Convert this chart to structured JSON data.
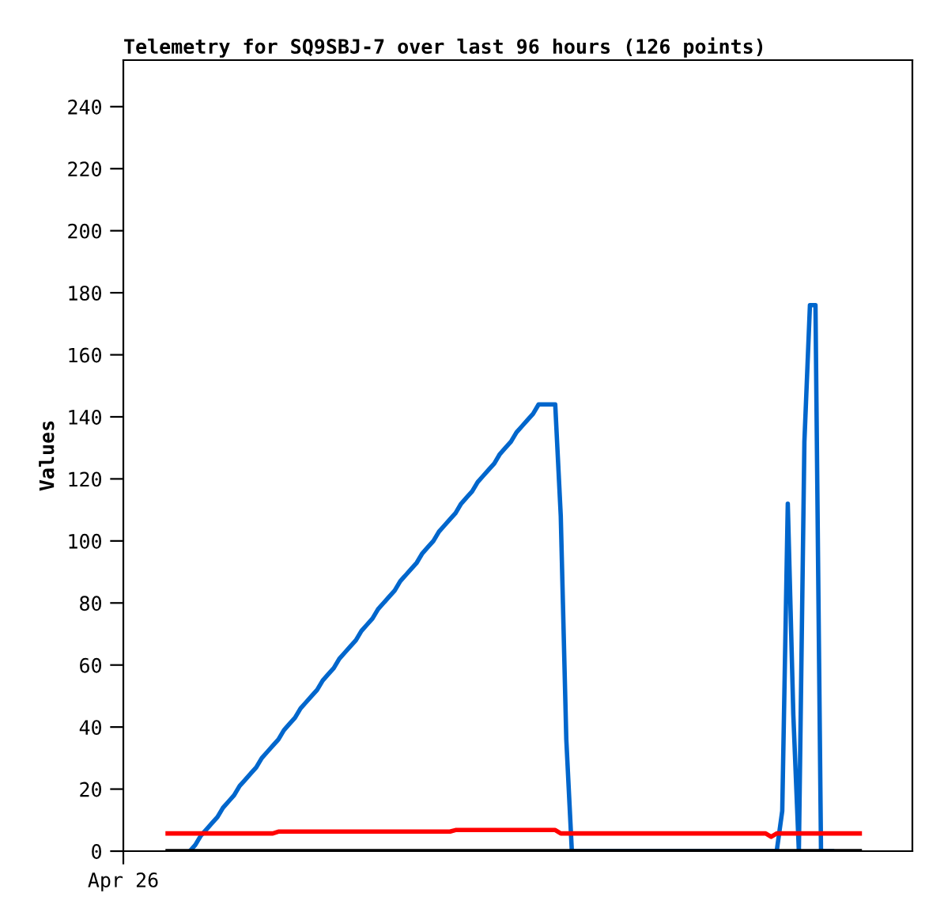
{
  "chart_data": {
    "type": "line",
    "title": "Telemetry for SQ9SBJ-7 over last 96 hours (126 points)",
    "ylabel": "Values",
    "categories": [
      "Apr 26",
      null,
      null,
      null,
      null,
      null,
      null,
      null,
      null,
      null,
      null,
      null,
      null,
      null,
      null,
      null,
      null,
      null,
      null,
      null,
      null,
      null,
      null,
      null,
      null,
      null,
      null,
      null,
      null,
      null,
      null,
      null,
      null,
      null,
      null,
      null,
      null,
      null,
      null,
      null,
      null,
      null,
      null,
      null,
      null,
      null,
      null,
      null,
      null,
      null,
      null,
      null,
      null,
      null,
      null,
      null,
      null,
      null,
      null,
      null,
      null,
      null,
      null,
      null,
      null,
      null,
      null,
      null,
      null,
      null,
      null,
      null,
      null,
      null,
      null,
      null,
      null,
      null,
      null,
      null,
      null,
      null,
      null,
      null,
      null,
      null,
      null,
      null,
      null,
      null,
      null,
      null,
      null,
      null,
      null,
      null,
      null,
      null,
      null,
      null,
      null,
      null,
      null,
      null,
      null,
      null,
      null,
      null,
      null,
      null,
      null,
      null,
      null,
      null,
      null,
      null,
      null,
      null,
      null,
      null,
      null,
      null,
      null,
      null,
      null,
      null,
      null,
      null,
      null,
      null,
      null,
      null,
      null,
      null,
      null,
      null,
      null,
      null,
      null,
      null,
      null,
      null,
      null
    ],
    "ylim": [
      0,
      255
    ],
    "yticks": [
      0,
      20,
      40,
      60,
      80,
      100,
      120,
      140,
      160,
      180,
      200,
      220,
      240
    ],
    "grid": false,
    "legend": false,
    "marker": "none",
    "line_style": "solid",
    "series": [
      {
        "color": "#0066cc",
        "values": [
          null,
          null,
          null,
          null,
          null,
          null,
          null,
          null,
          null,
          null,
          null,
          null,
          0,
          2,
          5,
          7,
          9,
          11,
          14,
          16,
          18,
          21,
          23,
          25,
          27,
          30,
          32,
          34,
          36,
          39,
          41,
          43,
          46,
          48,
          50,
          52,
          55,
          57,
          59,
          62,
          64,
          66,
          68,
          71,
          73,
          75,
          78,
          80,
          82,
          84,
          87,
          89,
          91,
          93,
          96,
          98,
          100,
          103,
          105,
          107,
          109,
          112,
          114,
          116,
          119,
          121,
          123,
          125,
          128,
          130,
          132,
          135,
          137,
          139,
          141,
          144,
          144,
          144,
          144,
          108,
          36,
          0,
          0,
          0,
          0,
          0,
          0,
          0,
          0,
          0,
          0,
          0,
          0,
          0,
          0,
          0,
          0,
          0,
          0,
          0,
          0,
          0,
          0,
          0,
          0,
          0,
          0,
          0,
          0,
          0,
          0,
          0,
          0,
          0,
          0,
          0,
          0,
          0,
          0,
          13,
          112,
          44,
          0,
          132,
          176,
          176,
          0,
          0,
          0,
          null,
          null,
          null,
          null,
          null,
          null,
          null,
          null,
          null,
          null,
          null,
          null,
          null,
          null
        ]
      },
      {
        "color": "#ff0000",
        "values": [
          null,
          null,
          null,
          null,
          null,
          null,
          null,
          null,
          5.7,
          5.7,
          5.7,
          5.7,
          5.7,
          5.7,
          5.7,
          5.7,
          5.7,
          5.7,
          5.7,
          5.7,
          5.7,
          5.7,
          5.7,
          5.7,
          5.7,
          5.7,
          5.7,
          5.7,
          6.3,
          6.3,
          6.3,
          6.3,
          6.3,
          6.3,
          6.3,
          6.3,
          6.3,
          6.3,
          6.3,
          6.3,
          6.3,
          6.3,
          6.3,
          6.3,
          6.3,
          6.3,
          6.3,
          6.3,
          6.3,
          6.3,
          6.3,
          6.3,
          6.3,
          6.3,
          6.3,
          6.3,
          6.3,
          6.3,
          6.3,
          6.3,
          6.8,
          6.8,
          6.8,
          6.8,
          6.8,
          6.8,
          6.8,
          6.8,
          6.8,
          6.8,
          6.8,
          6.8,
          6.8,
          6.8,
          6.8,
          6.8,
          6.8,
          6.8,
          6.8,
          5.7,
          5.7,
          5.7,
          5.7,
          5.7,
          5.7,
          5.7,
          5.7,
          5.7,
          5.7,
          5.7,
          5.7,
          5.7,
          5.7,
          5.7,
          5.7,
          5.7,
          5.7,
          5.7,
          5.7,
          5.7,
          5.7,
          5.7,
          5.7,
          5.7,
          5.7,
          5.7,
          5.7,
          5.7,
          5.7,
          5.7,
          5.7,
          5.7,
          5.7,
          5.7,
          5.7,
          5.7,
          5.7,
          4.6,
          5.7,
          5.7,
          5.7,
          5.7,
          5.7,
          5.7,
          5.7,
          5.7,
          5.7,
          5.7,
          5.7,
          5.7,
          5.7,
          5.7,
          5.7,
          5.7,
          null,
          null,
          null,
          null,
          null,
          null,
          null,
          null,
          null
        ]
      },
      {
        "color": "#000000",
        "values": [
          null,
          null,
          null,
          null,
          null,
          null,
          null,
          null,
          0,
          0,
          0,
          0,
          0,
          0,
          0,
          0,
          0,
          0,
          0,
          0,
          0,
          0,
          0,
          0,
          0,
          0,
          0,
          0,
          0,
          0,
          0,
          0,
          0,
          0,
          0,
          0,
          0,
          0,
          0,
          0,
          0,
          0,
          0,
          0,
          0,
          0,
          0,
          0,
          0,
          0,
          0,
          0,
          0,
          0,
          0,
          0,
          0,
          0,
          0,
          0,
          0,
          0,
          0,
          0,
          0,
          0,
          0,
          0,
          0,
          0,
          0,
          0,
          0,
          0,
          0,
          0,
          0,
          0,
          0,
          0,
          0,
          0,
          0,
          0,
          0,
          0,
          0,
          0,
          0,
          0,
          0,
          0,
          0,
          0,
          0,
          0,
          0,
          0,
          0,
          0,
          0,
          0,
          0,
          0,
          0,
          0,
          0,
          0,
          0,
          0,
          0,
          0,
          0,
          0,
          0,
          0,
          0,
          0,
          0,
          0,
          0,
          0,
          0,
          0,
          0,
          0,
          0,
          0,
          0,
          0,
          0,
          0,
          0,
          0,
          null,
          null,
          null,
          null,
          null,
          null,
          null,
          null,
          null
        ]
      }
    ]
  }
}
